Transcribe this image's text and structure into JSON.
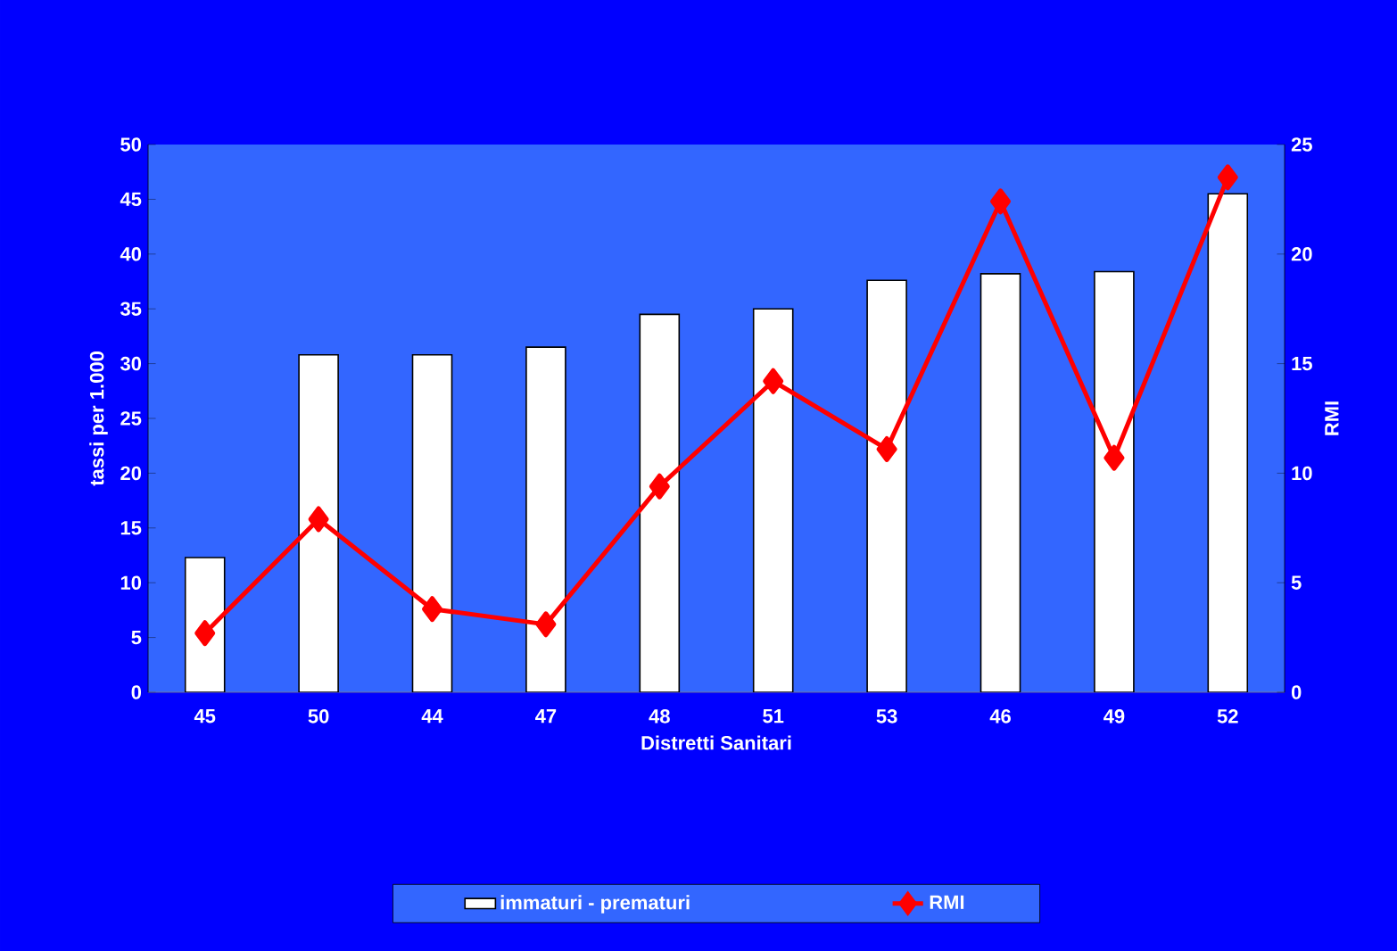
{
  "chart_data": {
    "type": "bar",
    "xlabel": "Distretti Sanitari",
    "ylabel": "tassi per 1.000",
    "y2label": "RMI",
    "categories": [
      "45",
      "50",
      "44",
      "47",
      "48",
      "51",
      "53",
      "46",
      "49",
      "52"
    ],
    "series": [
      {
        "name": "immaturi - prematuri",
        "color": "#ffffff",
        "values": [
          12.3,
          30.8,
          30.8,
          31.5,
          34.5,
          35.0,
          37.6,
          38.2,
          38.4,
          45.5
        ]
      },
      {
        "name": "RMI",
        "type": "line",
        "axis": "y2",
        "color": "#ff0000",
        "marker": "diamond",
        "values": [
          2.7,
          7.9,
          3.8,
          3.1,
          9.4,
          14.2,
          11.1,
          22.4,
          10.7,
          23.5
        ]
      }
    ],
    "ylim": [
      0,
      50
    ],
    "yticks": [
      0,
      5,
      10,
      15,
      20,
      25,
      30,
      35,
      40,
      45,
      50
    ],
    "y2lim": [
      0,
      25
    ],
    "y2ticks": [
      0,
      5,
      10,
      15,
      20,
      25
    ],
    "grid": false,
    "legend": "bottom"
  }
}
